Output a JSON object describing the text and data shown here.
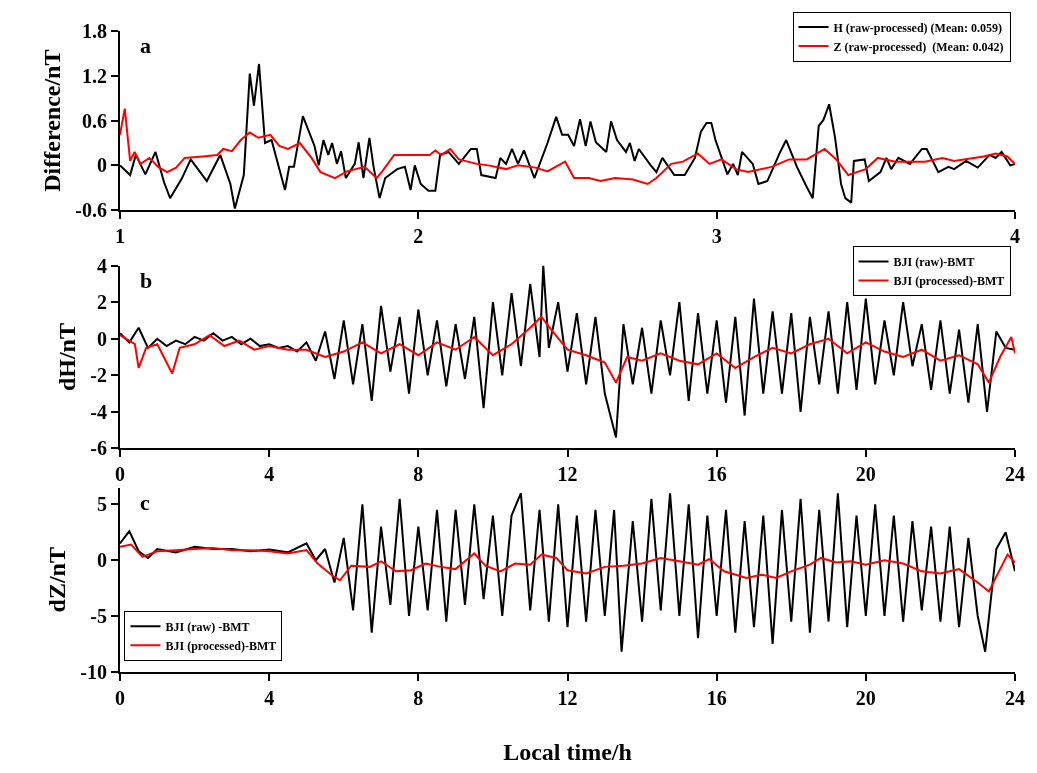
{
  "chart_data": [
    {
      "type": "line",
      "title": "a",
      "ylabel": "Difference/nT",
      "xlim": [
        1,
        4
      ],
      "xticks": [
        1,
        2,
        3,
        4
      ],
      "ylim": [
        -0.6,
        1.8
      ],
      "yticks": [
        -0.6,
        0,
        0.6,
        1.2,
        1.8
      ],
      "grid": false,
      "legend": "top right",
      "line_style": "solid",
      "marker": "none",
      "series": [
        {
          "name": "H (raw-processed) (Mean: 0.059)",
          "color": "#000000",
          "x": [
            1.0,
            1.034,
            1.053,
            1.085,
            1.119,
            1.148,
            1.168,
            1.208,
            1.237,
            1.291,
            1.336,
            1.37,
            1.385,
            1.415,
            1.435,
            1.449,
            1.466,
            1.486,
            1.508,
            1.534,
            1.553,
            1.567,
            1.583,
            1.613,
            1.652,
            1.666,
            1.682,
            1.698,
            1.711,
            1.727,
            1.741,
            1.757,
            1.787,
            1.8,
            1.816,
            1.836,
            1.85,
            1.87,
            1.889,
            1.929,
            1.955,
            1.974,
            1.988,
            2.008,
            2.034,
            2.057,
            2.073,
            2.101,
            2.136,
            2.176,
            2.196,
            2.211,
            2.259,
            2.275,
            2.294,
            2.314,
            2.334,
            2.354,
            2.389,
            2.433,
            2.462,
            2.482,
            2.502,
            2.522,
            2.542,
            2.561,
            2.577,
            2.595,
            2.63,
            2.646,
            2.666,
            2.696,
            2.709,
            2.725,
            2.739,
            2.779,
            2.798,
            2.818,
            2.858,
            2.893,
            2.927,
            2.947,
            2.966,
            2.982,
            2.996,
            3.036,
            3.055,
            3.071,
            3.085,
            3.121,
            3.14,
            3.17,
            3.213,
            3.233,
            3.269,
            3.302,
            3.322,
            3.342,
            3.358,
            3.377,
            3.397,
            3.417,
            3.431,
            3.451,
            3.46,
            3.496,
            3.51,
            3.549,
            3.569,
            3.585,
            3.609,
            3.648,
            3.688,
            3.704,
            3.743,
            3.777,
            3.796,
            3.836,
            3.875,
            3.915,
            3.935,
            3.955,
            3.984,
            4.0
          ],
          "values": [
            0,
            -0.13,
            0.14,
            -0.12,
            0.18,
            -0.23,
            -0.44,
            -0.17,
            0.08,
            -0.21,
            0.14,
            -0.25,
            -0.58,
            -0.13,
            1.23,
            0.8,
            1.36,
            0.3,
            0.34,
            -0.05,
            -0.33,
            -0.02,
            -0.02,
            0.66,
            0.26,
            0,
            0.34,
            0.14,
            0.3,
            0.02,
            0.19,
            -0.17,
            0.02,
            0.31,
            -0.17,
            0.37,
            -0.02,
            -0.44,
            -0.17,
            -0.05,
            -0.02,
            -0.33,
            0,
            -0.25,
            -0.34,
            -0.34,
            0.14,
            0.18,
            0.02,
            0.22,
            0.22,
            -0.13,
            -0.17,
            0.1,
            0.02,
            0.22,
            0.02,
            0.2,
            -0.17,
            0.3,
            0.65,
            0.41,
            0.41,
            0.26,
            0.62,
            0.26,
            0.59,
            0.31,
            0.18,
            0.59,
            0.34,
            0.18,
            0.3,
            0.06,
            0.22,
            0,
            -0.09,
            0.1,
            -0.13,
            -0.13,
            0.1,
            0.45,
            0.57,
            0.57,
            0.34,
            -0.12,
            0.02,
            -0.13,
            0.18,
            0.02,
            -0.25,
            -0.21,
            0.18,
            0.34,
            -0.02,
            -0.29,
            -0.44,
            0.53,
            0.61,
            0.82,
            0.37,
            -0.25,
            -0.44,
            -0.5,
            0.06,
            0.08,
            -0.21,
            -0.09,
            0.1,
            -0.05,
            0.1,
            0.02,
            0.22,
            0.22,
            -0.09,
            -0.02,
            -0.05,
            0.06,
            -0.03,
            0.14,
            0.1,
            0.18,
            0,
            0.02
          ]
        },
        {
          "name": "Z (raw-processed)  (Mean: 0.042)",
          "color": "#ff0000",
          "x": [
            1.0,
            1.016,
            1.034,
            1.049,
            1.069,
            1.099,
            1.128,
            1.158,
            1.188,
            1.217,
            1.277,
            1.326,
            1.346,
            1.375,
            1.405,
            1.435,
            1.464,
            1.504,
            1.534,
            1.563,
            1.603,
            1.642,
            1.672,
            1.721,
            1.761,
            1.82,
            1.86,
            1.879,
            1.919,
            2.038,
            2.057,
            2.077,
            2.107,
            2.136,
            2.196,
            2.235,
            2.294,
            2.334,
            2.393,
            2.433,
            2.492,
            2.522,
            2.571,
            2.611,
            2.66,
            2.719,
            2.769,
            2.798,
            2.848,
            2.887,
            2.937,
            2.976,
            3.016,
            3.065,
            3.105,
            3.184,
            3.243,
            3.302,
            3.362,
            3.401,
            3.441,
            3.5,
            3.54,
            3.599,
            3.698,
            3.757,
            3.796,
            3.895,
            3.935,
            3.974,
            4.0
          ],
          "values": [
            0.41,
            0.76,
            0.06,
            0.18,
            0.02,
            0.1,
            -0.02,
            -0.09,
            -0.03,
            0.1,
            0.12,
            0.14,
            0.22,
            0.19,
            0.34,
            0.44,
            0.37,
            0.41,
            0.26,
            0.22,
            0.3,
            0.1,
            -0.09,
            -0.17,
            -0.08,
            -0.02,
            -0.17,
            -0.08,
            0.14,
            0.14,
            0.2,
            0.14,
            0.22,
            0.08,
            0.02,
            0,
            -0.05,
            0,
            -0.03,
            -0.08,
            0.05,
            -0.17,
            -0.17,
            -0.21,
            -0.17,
            -0.19,
            -0.25,
            -0.17,
            0.02,
            0.05,
            0.16,
            0.02,
            0.08,
            -0.05,
            -0.09,
            -0.02,
            0.08,
            0.08,
            0.22,
            0.08,
            -0.13,
            -0.05,
            0.1,
            0.05,
            0.05,
            0.1,
            0.06,
            0.12,
            0.16,
            0.12,
            0.02
          ]
        }
      ]
    },
    {
      "type": "line",
      "title": "b",
      "ylabel": "dH/nT",
      "xlim": [
        0,
        24
      ],
      "xticks": [
        0,
        4,
        8,
        12,
        16,
        20,
        24
      ],
      "ylim": [
        -6,
        4
      ],
      "yticks": [
        -6,
        -4,
        -2,
        0,
        2,
        4
      ],
      "grid": false,
      "legend": "top right",
      "line_style": "solid",
      "marker": "none",
      "series": [
        {
          "name": "BJI (raw)-BMT",
          "color": "#000000",
          "x": [
            0,
            0.25,
            0.5,
            0.75,
            1,
            1.25,
            1.5,
            1.75,
            2,
            2.25,
            2.5,
            2.75,
            3,
            3.25,
            3.5,
            3.75,
            4,
            4.25,
            4.5,
            4.75,
            5,
            5.25,
            5.5,
            5.75,
            6,
            6.25,
            6.5,
            6.75,
            7,
            7.25,
            7.5,
            7.75,
            8,
            8.25,
            8.5,
            8.75,
            9,
            9.25,
            9.5,
            9.75,
            10,
            10.25,
            10.5,
            10.75,
            11,
            11.25,
            11.35,
            11.5,
            11.75,
            12,
            12.25,
            12.5,
            12.75,
            13,
            13.3,
            13.5,
            13.75,
            14,
            14.25,
            14.5,
            14.75,
            15,
            15.25,
            15.5,
            15.75,
            16,
            16.25,
            16.5,
            16.75,
            17,
            17.25,
            17.5,
            17.75,
            18,
            18.25,
            18.5,
            18.75,
            19,
            19.25,
            19.5,
            19.75,
            20,
            20.25,
            20.5,
            20.75,
            21,
            21.25,
            21.5,
            21.75,
            22,
            22.25,
            22.5,
            22.75,
            23,
            23.25,
            23.5,
            23.75,
            24
          ],
          "values": [
            0.3,
            -0.2,
            0.6,
            -0.5,
            0,
            -0.4,
            -0.1,
            -0.3,
            0.1,
            -0.1,
            0.3,
            -0.1,
            0.1,
            -0.3,
            0,
            -0.4,
            -0.3,
            -0.5,
            -0.4,
            -0.7,
            -0.2,
            -1.2,
            0.4,
            -2.2,
            1.0,
            -2.5,
            0.8,
            -3.4,
            1.8,
            -1.8,
            1.2,
            -3.0,
            1.6,
            -2.0,
            1.0,
            -2.6,
            0.8,
            -2.2,
            1.2,
            -3.8,
            2.0,
            -2.0,
            2.5,
            -1.5,
            3.0,
            -1.0,
            4.0,
            -0.5,
            2.0,
            -1.8,
            1.4,
            -2.5,
            1.2,
            -3.0,
            -5.4,
            0.8,
            -2.5,
            0.6,
            -3.0,
            1.0,
            -2.0,
            2.0,
            -3.4,
            1.4,
            -3.0,
            1.0,
            -3.5,
            1.2,
            -4.2,
            2.2,
            -3.0,
            1.5,
            -3.0,
            1.4,
            -4.0,
            1.2,
            -2.5,
            1.5,
            -3.0,
            2.0,
            -2.8,
            2.2,
            -2.5,
            1.0,
            -2.0,
            2.0,
            -1.5,
            0.8,
            -2.8,
            1.0,
            -3.0,
            0.5,
            -3.5,
            0.8,
            -4.0,
            0.4,
            -0.5,
            -0.6
          ]
        },
        {
          "name": "BJI (processed)-BMT",
          "color": "#ff0000",
          "x": [
            0,
            0.4,
            0.5,
            0.7,
            1,
            1.4,
            1.6,
            2,
            2.4,
            2.8,
            3.2,
            3.6,
            4,
            4.5,
            5,
            5.5,
            6,
            6.5,
            7,
            7.5,
            8,
            8.5,
            9,
            9.5,
            10,
            10.5,
            11,
            11.3,
            11.6,
            12,
            12.5,
            13,
            13.3,
            13.6,
            14,
            14.5,
            15,
            15.5,
            16,
            16.5,
            17,
            17.5,
            18,
            18.5,
            19,
            19.5,
            20,
            20.5,
            21,
            21.5,
            22,
            22.5,
            23,
            23.3,
            23.6,
            23.9,
            24
          ],
          "values": [
            0.2,
            -0.3,
            -1.6,
            -0.5,
            -0.3,
            -1.9,
            -0.5,
            -0.3,
            0.2,
            -0.4,
            -0.1,
            -0.6,
            -0.4,
            -0.6,
            -0.6,
            -1.0,
            -0.7,
            -0.2,
            -0.8,
            -0.3,
            -0.9,
            -0.2,
            -0.6,
            0.1,
            -0.9,
            -0.3,
            0.6,
            1.2,
            0.4,
            -0.6,
            -0.9,
            -1.3,
            -2.4,
            -1.0,
            -1.2,
            -0.8,
            -1.2,
            -1.4,
            -0.8,
            -1.6,
            -1.0,
            -0.5,
            -0.8,
            -0.3,
            0,
            -0.8,
            -0.2,
            -0.7,
            -1.0,
            -0.6,
            -1.2,
            -0.9,
            -1.4,
            -2.4,
            -1.0,
            0.1,
            -0.8
          ]
        }
      ]
    },
    {
      "type": "line",
      "title": "c",
      "xlabel": "Local time/h",
      "ylabel": "dZ/nT",
      "xlim": [
        0,
        24
      ],
      "xticks": [
        0,
        4,
        8,
        12,
        16,
        20,
        24
      ],
      "ylim": [
        -10,
        6.5
      ],
      "yticks": [
        -10,
        -5,
        0,
        5
      ],
      "grid": false,
      "legend": "bottom left",
      "line_style": "solid",
      "marker": "none",
      "series": [
        {
          "name": "BJI (raw) -BMT",
          "color": "#000000",
          "x": [
            0,
            0.25,
            0.5,
            0.75,
            1,
            1.5,
            2,
            2.5,
            3,
            3.5,
            4,
            4.5,
            5,
            5.25,
            5.5,
            5.75,
            6,
            6.25,
            6.5,
            6.75,
            7,
            7.25,
            7.5,
            7.75,
            8,
            8.25,
            8.5,
            8.75,
            9,
            9.25,
            9.5,
            9.75,
            10,
            10.25,
            10.5,
            10.75,
            11,
            11.25,
            11.5,
            11.75,
            12,
            12.25,
            12.5,
            12.75,
            13,
            13.25,
            13.45,
            13.75,
            14,
            14.25,
            14.5,
            14.75,
            15,
            15.25,
            15.5,
            15.75,
            16,
            16.25,
            16.5,
            16.75,
            17,
            17.25,
            17.5,
            17.75,
            18,
            18.25,
            18.5,
            18.75,
            19,
            19.25,
            19.5,
            19.75,
            20,
            20.25,
            20.5,
            20.75,
            21,
            21.25,
            21.5,
            21.75,
            22,
            22.25,
            22.5,
            22.75,
            23,
            23.2,
            23.5,
            23.75,
            24
          ],
          "values": [
            1.5,
            2.6,
            0.8,
            0.2,
            1.0,
            0.7,
            1.2,
            1.0,
            1.0,
            0.8,
            0.95,
            0.7,
            1.5,
            0,
            1.0,
            -2.0,
            2.0,
            -4.5,
            5.0,
            -6.5,
            3.0,
            -4.0,
            5.5,
            -5.0,
            3.0,
            -4.5,
            4.5,
            -5.5,
            4.5,
            -4.0,
            5.0,
            -3.5,
            4.0,
            -5.0,
            4.0,
            6.0,
            -4.5,
            4.5,
            -5.5,
            5.0,
            -6.0,
            4.0,
            -5.5,
            4.5,
            -5.0,
            4.5,
            -8.2,
            3.5,
            -5.5,
            5.5,
            -4.5,
            6.0,
            -5.0,
            5.0,
            -7.0,
            4.0,
            -5.0,
            4.5,
            -6.5,
            3.5,
            -6.0,
            4.0,
            -7.5,
            4.5,
            -5.5,
            5.5,
            -6.5,
            4.5,
            -5.5,
            6.0,
            -6.0,
            4.0,
            -5.0,
            5.0,
            -5.0,
            4.0,
            -5.5,
            3.5,
            -4.5,
            3.0,
            -5.5,
            3.0,
            -6.0,
            2.0,
            -5.0,
            -8.2,
            1.0,
            2.5,
            -1.0
          ]
        },
        {
          "name": "BJI (processed)-BMT",
          "color": "#ff0000",
          "x": [
            0,
            0.3,
            0.6,
            1,
            1.5,
            2,
            2.5,
            3,
            3.5,
            4,
            4.5,
            5,
            5.3,
            5.7,
            5.9,
            6.2,
            6.7,
            7,
            7.4,
            7.8,
            8.2,
            8.6,
            9,
            9.5,
            9.8,
            10.2,
            10.6,
            11,
            11.3,
            11.7,
            12,
            12.5,
            13,
            13.5,
            14,
            14.5,
            15,
            15.5,
            15.8,
            16.2,
            16.8,
            17.2,
            17.6,
            18,
            18.5,
            18.8,
            19.2,
            19.6,
            20,
            20.5,
            21,
            21.5,
            22,
            22.5,
            23,
            23.3,
            23.6,
            23.8,
            24
          ],
          "values": [
            1.2,
            1.4,
            0.3,
            0.8,
            0.9,
            1.0,
            1.1,
            0.9,
            0.9,
            0.8,
            0.6,
            0.9,
            -0.3,
            -1.4,
            -1.8,
            -0.5,
            -0.6,
            -0.1,
            -1.0,
            -0.9,
            -0.3,
            -0.6,
            -0.8,
            0.6,
            -0.5,
            -1.0,
            -0.3,
            -0.4,
            0.5,
            0.2,
            -0.9,
            -1.2,
            -0.6,
            -0.5,
            -0.3,
            0.2,
            -0.1,
            -0.4,
            0.1,
            -1.0,
            -1.6,
            -1.3,
            -1.6,
            -1.0,
            -0.4,
            0.2,
            -0.2,
            -0.1,
            -0.4,
            0,
            -0.3,
            -1.0,
            -1.2,
            -0.8,
            -2.0,
            -2.8,
            -0.8,
            0.5,
            -0.2
          ]
        }
      ]
    }
  ]
}
